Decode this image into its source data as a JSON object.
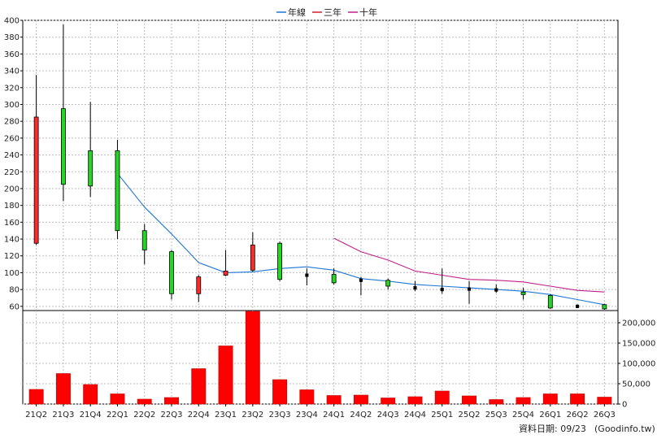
{
  "chart_data": {
    "type": "candlestick+bar",
    "legend": [
      {
        "label": "年線",
        "color": "#1f77d6"
      },
      {
        "label": "三年",
        "color": "#d62030"
      },
      {
        "label": "十年",
        "color": "#c0208a"
      }
    ],
    "categories": [
      "21Q2",
      "21Q3",
      "21Q4",
      "22Q1",
      "22Q2",
      "22Q3",
      "22Q4",
      "23Q1",
      "23Q2",
      "23Q3",
      "23Q4",
      "24Q1",
      "24Q2",
      "24Q3",
      "24Q4",
      "25Q1",
      "25Q2",
      "25Q3",
      "25Q4",
      "26Q1",
      "26Q2",
      "26Q3"
    ],
    "price_axis": {
      "min": 55,
      "max": 400,
      "ticks": [
        60,
        80,
        100,
        120,
        140,
        160,
        180,
        200,
        220,
        240,
        260,
        280,
        300,
        320,
        340,
        360,
        380,
        400
      ]
    },
    "volume_axis": {
      "min": 0,
      "max": 230000,
      "ticks": [
        0,
        50000,
        100000,
        150000,
        200000
      ],
      "tick_labels": [
        "0",
        "50,000",
        "100,000",
        "150,000",
        "200,000"
      ]
    },
    "candles": [
      {
        "o": 135,
        "c": 285,
        "h": 335,
        "l": 133
      },
      {
        "o": 295,
        "c": 205,
        "h": 395,
        "l": 185
      },
      {
        "o": 245,
        "c": 203,
        "h": 303,
        "l": 190
      },
      {
        "o": 245,
        "c": 150,
        "h": 258,
        "l": 140
      },
      {
        "o": 150,
        "c": 127,
        "h": 158,
        "l": 110
      },
      {
        "o": 125,
        "c": 75,
        "h": 127,
        "l": 68
      },
      {
        "o": 75,
        "c": 95,
        "h": 97,
        "l": 65
      },
      {
        "o": 97,
        "c": 102,
        "h": 127,
        "l": 96
      },
      {
        "o": 103,
        "c": 133,
        "h": 148,
        "l": 101
      },
      {
        "o": 135,
        "c": 92,
        "h": 137,
        "l": 90
      },
      {
        "o": 96,
        "c": 98,
        "h": 105,
        "l": 85
      },
      {
        "o": 98,
        "c": 88,
        "h": 105,
        "l": 86
      },
      {
        "o": 91,
        "c": 91,
        "h": 95,
        "l": 73
      },
      {
        "o": 91,
        "c": 84,
        "h": 93,
        "l": 80
      },
      {
        "o": 82,
        "c": 82,
        "h": 90,
        "l": 78
      },
      {
        "o": 80,
        "c": 80,
        "h": 105,
        "l": 75
      },
      {
        "o": 81,
        "c": 80,
        "h": 90,
        "l": 63
      },
      {
        "o": 80,
        "c": 79,
        "h": 86,
        "l": 76
      },
      {
        "o": 77,
        "c": 74,
        "h": 82,
        "l": 68
      },
      {
        "o": 73,
        "c": 58,
        "h": 74,
        "l": 57
      },
      {
        "o": 60,
        "c": 60,
        "h": 62,
        "l": 58
      },
      {
        "o": 62,
        "c": 57,
        "h": 63,
        "l": 56
      }
    ],
    "ma_year": [
      null,
      null,
      null,
      218,
      178,
      146,
      112,
      100,
      101,
      105,
      107,
      103,
      93,
      90,
      86,
      84,
      82,
      80,
      78,
      74,
      68,
      62
    ],
    "ma_3year": [
      null,
      null,
      null,
      null,
      null,
      null,
      null,
      null,
      null,
      null,
      null,
      null,
      null,
      null,
      null,
      null,
      null,
      null,
      null,
      null,
      null,
      null
    ],
    "ma_10year": [
      null,
      null,
      null,
      null,
      null,
      null,
      null,
      null,
      null,
      null,
      null,
      141,
      125,
      115,
      102,
      97,
      92,
      91,
      89,
      84,
      79,
      77
    ],
    "volumes": [
      36000,
      75000,
      48000,
      25000,
      12000,
      16000,
      87000,
      143000,
      228000,
      60000,
      35000,
      21000,
      22000,
      15000,
      18000,
      32000,
      20000,
      11000,
      16000,
      25000,
      25000,
      17000
    ]
  },
  "footer": {
    "date_label": "資料日期: 09/23",
    "source": "(Goodinfo.tw)"
  }
}
